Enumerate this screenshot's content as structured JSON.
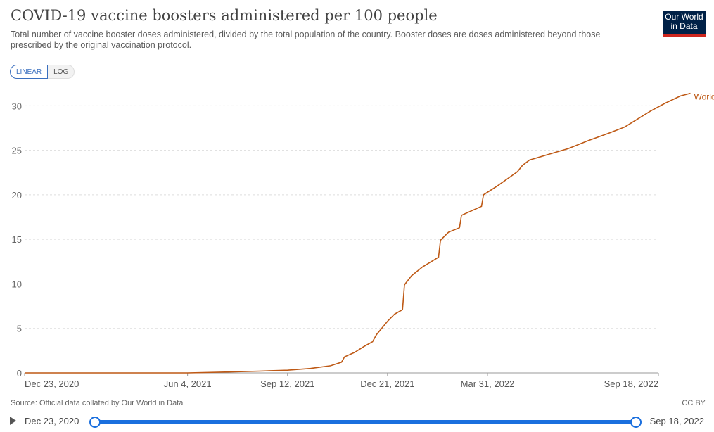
{
  "header": {
    "title": "COVID-19 vaccine boosters administered per 100 people",
    "subtitle": "Total number of vaccine booster doses administered, divided by the total population of the country. Booster doses are doses administered beyond those prescribed by the original vaccination protocol.",
    "logo_line1": "Our World",
    "logo_line2": "in Data",
    "logo_color": "#002147",
    "logo_accent": "#ce261e"
  },
  "scale_toggle": {
    "linear_label": "LINEAR",
    "log_label": "LOG",
    "selected": "LINEAR"
  },
  "chart_data": {
    "type": "line",
    "title": "COVID-19 vaccine boosters administered per 100 people",
    "x_ticks": [
      "Dec 23, 2020",
      "Jun 4, 2021",
      "Sep 12, 2021",
      "Dec 21, 2021",
      "Mar 31, 2022",
      "Sep 18, 2022"
    ],
    "x_range": [
      "2020-12-23",
      "2022-09-18"
    ],
    "ylim": [
      0,
      32
    ],
    "y_ticks": [
      0,
      5,
      10,
      15,
      20,
      25,
      30
    ],
    "grid": true,
    "series": [
      {
        "name": "World",
        "color": "#be5915",
        "points": [
          [
            "2020-12-23",
            0
          ],
          [
            "2021-06-04",
            0
          ],
          [
            "2021-07-15",
            0.1
          ],
          [
            "2021-08-15",
            0.2
          ],
          [
            "2021-09-12",
            0.3
          ],
          [
            "2021-10-05",
            0.5
          ],
          [
            "2021-10-25",
            0.8
          ],
          [
            "2021-11-05",
            1.2
          ],
          [
            "2021-11-08",
            1.8
          ],
          [
            "2021-11-18",
            2.3
          ],
          [
            "2021-11-28",
            3.0
          ],
          [
            "2021-12-06",
            3.5
          ],
          [
            "2021-12-10",
            4.3
          ],
          [
            "2021-12-21",
            5.8
          ],
          [
            "2021-12-28",
            6.6
          ],
          [
            "2022-01-05",
            7.1
          ],
          [
            "2022-01-07",
            9.9
          ],
          [
            "2022-01-14",
            10.9
          ],
          [
            "2022-01-25",
            11.9
          ],
          [
            "2022-02-10",
            13.0
          ],
          [
            "2022-02-12",
            14.9
          ],
          [
            "2022-02-20",
            15.8
          ],
          [
            "2022-03-03",
            16.3
          ],
          [
            "2022-03-05",
            17.7
          ],
          [
            "2022-03-25",
            18.7
          ],
          [
            "2022-03-27",
            20.0
          ],
          [
            "2022-04-10",
            21.0
          ],
          [
            "2022-04-20",
            21.8
          ],
          [
            "2022-04-30",
            22.6
          ],
          [
            "2022-05-05",
            23.3
          ],
          [
            "2022-05-12",
            23.9
          ],
          [
            "2022-05-30",
            24.5
          ],
          [
            "2022-06-20",
            25.2
          ],
          [
            "2022-07-10",
            26.1
          ],
          [
            "2022-07-30",
            26.9
          ],
          [
            "2022-08-15",
            27.6
          ],
          [
            "2022-08-28",
            28.5
          ],
          [
            "2022-09-10",
            29.4
          ],
          [
            "2022-09-25",
            30.3
          ],
          [
            "2022-10-10",
            31.1
          ],
          [
            "2022-10-20",
            31.4
          ]
        ]
      }
    ]
  },
  "footer": {
    "source": "Source: Official data collated by Our World in Data",
    "license": "CC BY"
  },
  "timeline": {
    "start_label": "Dec 23, 2020",
    "end_label": "Sep 18, 2022",
    "accent": "#1a6fde"
  }
}
